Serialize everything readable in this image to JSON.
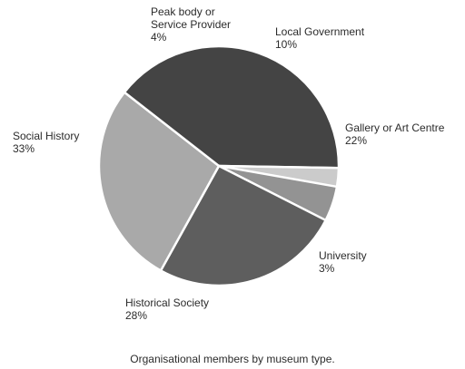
{
  "chart_data": {
    "type": "pie",
    "title": "",
    "caption": "Organisational members by museum type.",
    "slices": [
      {
        "label": "Local Government",
        "value_label": "10%",
        "value": 10,
        "color": "#e0e0e0"
      },
      {
        "label": "Gallery or Art Centre",
        "value_label": "22%",
        "value": 22,
        "color": "#939393"
      },
      {
        "label": "University",
        "value_label": "3%",
        "value": 3,
        "color": "#5e5e5e"
      },
      {
        "label": "Historical Society",
        "value_label": "28%",
        "value": 28,
        "color": "#a9a9a9"
      },
      {
        "label": "Social History",
        "value_label": "33%",
        "value": 33,
        "color": "#444444"
      },
      {
        "label": "Peak body or Service Provider",
        "value_label": "4%",
        "value": 4,
        "color": "#cbcbcb"
      }
    ]
  }
}
